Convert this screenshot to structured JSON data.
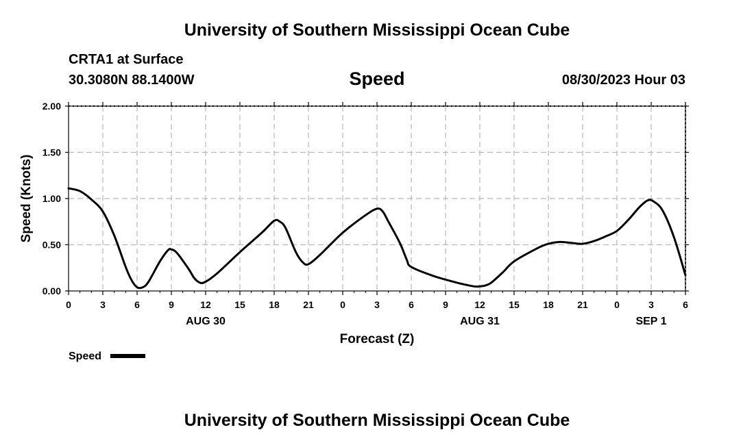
{
  "header": {
    "title": "University of Southern Mississippi Ocean Cube",
    "station_name": "CRTA1 at Surface",
    "coords": "30.3080N  88.1400W",
    "run_time": "08/30/2023 Hour 03"
  },
  "footer": {
    "title": "University of Southern Mississippi Ocean Cube"
  },
  "chart_data": {
    "type": "line",
    "title": "Speed",
    "xlabel": "Forecast (Z)",
    "ylabel": "Speed (Knots)",
    "ylim": [
      0,
      2
    ],
    "xlim": [
      0,
      54
    ],
    "y_ticks": [
      "0.00",
      "0.50",
      "1.00",
      "1.50",
      "2.00"
    ],
    "x_ticks": [
      "0",
      "3",
      "6",
      "9",
      "12",
      "15",
      "18",
      "21",
      "0",
      "3",
      "6",
      "9",
      "12",
      "15",
      "18",
      "21",
      "0",
      "3",
      "6"
    ],
    "date_labels": [
      {
        "label": "AUG 30",
        "hour": 12
      },
      {
        "label": "AUG 31",
        "hour": 36
      },
      {
        "label": "SEP 1",
        "hour": 51
      }
    ],
    "grid": true,
    "legend_position": "bottom-left",
    "series": [
      {
        "name": "Speed",
        "color": "#000000",
        "points": [
          [
            0,
            1.11
          ],
          [
            1,
            1.08
          ],
          [
            2,
            0.99
          ],
          [
            3,
            0.86
          ],
          [
            4,
            0.6
          ],
          [
            5,
            0.26
          ],
          [
            5.5,
            0.12
          ],
          [
            6,
            0.04
          ],
          [
            6.5,
            0.04
          ],
          [
            7,
            0.1
          ],
          [
            8,
            0.32
          ],
          [
            8.7,
            0.44
          ],
          [
            9,
            0.45
          ],
          [
            9.5,
            0.41
          ],
          [
            10.5,
            0.24
          ],
          [
            11,
            0.14
          ],
          [
            11.5,
            0.09
          ],
          [
            12,
            0.1
          ],
          [
            13,
            0.19
          ],
          [
            15,
            0.42
          ],
          [
            17,
            0.64
          ],
          [
            18,
            0.76
          ],
          [
            18.5,
            0.75
          ],
          [
            19,
            0.68
          ],
          [
            19.9,
            0.42
          ],
          [
            20.5,
            0.31
          ],
          [
            21,
            0.29
          ],
          [
            22,
            0.39
          ],
          [
            24,
            0.63
          ],
          [
            26,
            0.82
          ],
          [
            27,
            0.89
          ],
          [
            27.5,
            0.86
          ],
          [
            28,
            0.75
          ],
          [
            29,
            0.52
          ],
          [
            29.6,
            0.34
          ],
          [
            30,
            0.26
          ],
          [
            32,
            0.16
          ],
          [
            34,
            0.09
          ],
          [
            35.5,
            0.05
          ],
          [
            36,
            0.05
          ],
          [
            36.5,
            0.06
          ],
          [
            37,
            0.09
          ],
          [
            38,
            0.2
          ],
          [
            39,
            0.32
          ],
          [
            41,
            0.46
          ],
          [
            42,
            0.51
          ],
          [
            43,
            0.53
          ],
          [
            44,
            0.52
          ],
          [
            45,
            0.51
          ],
          [
            46,
            0.54
          ],
          [
            47,
            0.59
          ],
          [
            48,
            0.65
          ],
          [
            49,
            0.77
          ],
          [
            50,
            0.91
          ],
          [
            50.7,
            0.98
          ],
          [
            51.2,
            0.97
          ],
          [
            52,
            0.87
          ],
          [
            53,
            0.58
          ],
          [
            54,
            0.17
          ]
        ]
      }
    ]
  }
}
